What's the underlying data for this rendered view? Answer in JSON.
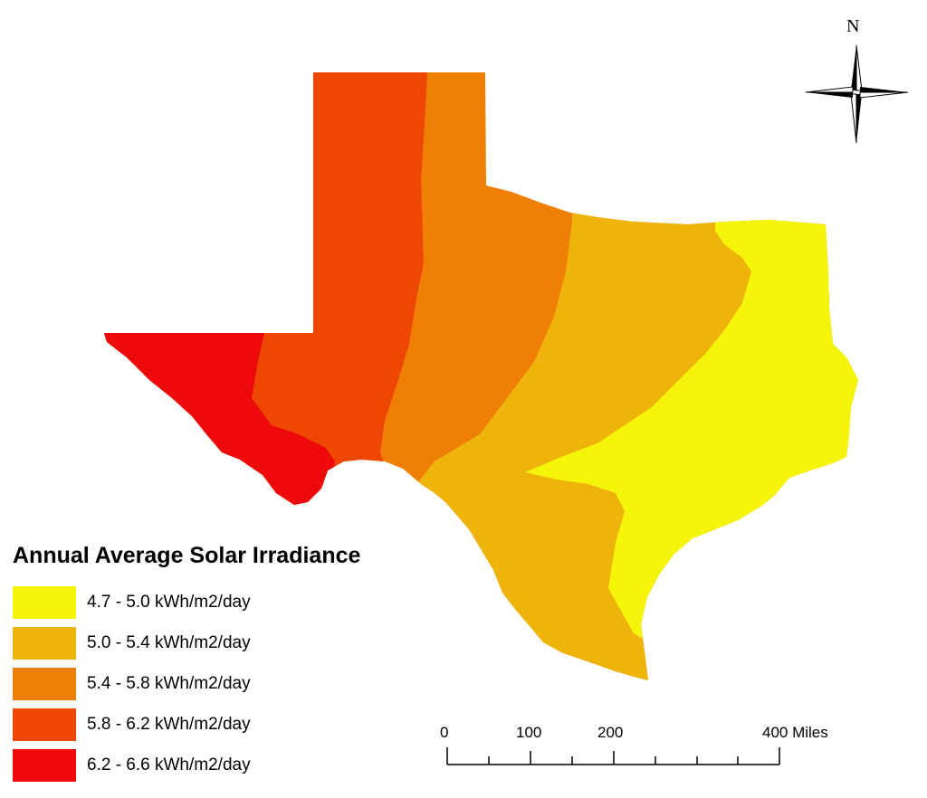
{
  "legend": {
    "title": "Annual Average Solar Irradiance",
    "items": [
      {
        "label": "4.7 - 5.0 kWh/m2/day",
        "color": "#f5f50a"
      },
      {
        "label": "5.0 - 5.4 kWh/m2/day",
        "color": "#efb40c"
      },
      {
        "label": "5.4 - 5.8 kWh/m2/day",
        "color": "#ef7f05"
      },
      {
        "label": "5.8 - 6.2 kWh/m2/day",
        "color": "#ee4704"
      },
      {
        "label": "6.2 - 6.6 kWh/m2/day",
        "color": "#ee0a0a"
      }
    ]
  },
  "north_arrow": {
    "label": "N",
    "icon": "compass-rose-icon"
  },
  "scale_bar": {
    "ticks": [
      "0",
      "100",
      "200",
      "400 Miles"
    ]
  }
}
